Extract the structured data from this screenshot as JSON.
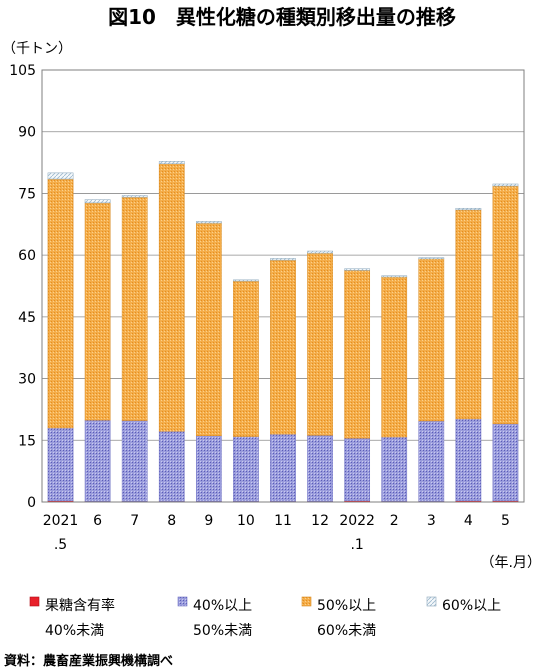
{
  "chart_data": {
    "type": "bar",
    "stacked": true,
    "title": "図10　異性化糖の種類別移出量の推移",
    "ylabel": "（千トン）",
    "xlabel": "（年.月）",
    "ylim": [
      0,
      105
    ],
    "yticks": [
      "0",
      "15",
      "30",
      "45",
      "60",
      "75",
      "90",
      "105"
    ],
    "ytick_values": [
      0,
      15,
      30,
      45,
      60,
      75,
      90,
      105
    ],
    "grid": true,
    "legend_position": "bottom",
    "categories": [
      "2021\n.5",
      "6",
      "7",
      "8",
      "9",
      "10",
      "11",
      "12",
      "2022\n.1",
      "2",
      "3",
      "4",
      "5"
    ],
    "category_lines": [
      [
        "2021",
        ".5"
      ],
      [
        "6"
      ],
      [
        "7"
      ],
      [
        "8"
      ],
      [
        "9"
      ],
      [
        "10"
      ],
      [
        "11"
      ],
      [
        "12"
      ],
      [
        "2022",
        ".1"
      ],
      [
        "2"
      ],
      [
        "3"
      ],
      [
        "4"
      ],
      [
        "5"
      ]
    ],
    "series": [
      {
        "name": "果糖含有率\n40%未満",
        "name_lines": [
          "果糖含有率",
          "40%未満"
        ],
        "color": "#e8202a",
        "values": [
          0.3,
          0.2,
          0.2,
          0.2,
          0.2,
          0.2,
          0.2,
          0.2,
          0.3,
          0.2,
          0.2,
          0.3,
          0.3
        ]
      },
      {
        "name": "40%以上\n50%未満",
        "name_lines": [
          "40%以上",
          "50%未満"
        ],
        "color": "#8c8fd6",
        "values": [
          17.7,
          19.7,
          19.6,
          17.0,
          15.9,
          15.7,
          16.3,
          16.0,
          15.2,
          15.6,
          19.5,
          19.9,
          18.7
        ]
      },
      {
        "name": "50%以上\n60%未満",
        "name_lines": [
          "50%以上",
          "60%未満"
        ],
        "color": "#f2a23a",
        "values": [
          60.5,
          52.8,
          54.3,
          65.0,
          51.7,
          37.8,
          42.3,
          44.3,
          40.8,
          38.9,
          39.4,
          50.8,
          57.8
        ]
      },
      {
        "name": "60%以上",
        "name_lines": [
          "60%以上"
        ],
        "color": "#dfe8f0",
        "values": [
          1.5,
          0.8,
          0.4,
          0.6,
          0.4,
          0.3,
          0.4,
          0.5,
          0.4,
          0.3,
          0.3,
          0.4,
          0.5
        ]
      }
    ],
    "source": "資料：農畜産業振興機構調べ"
  }
}
